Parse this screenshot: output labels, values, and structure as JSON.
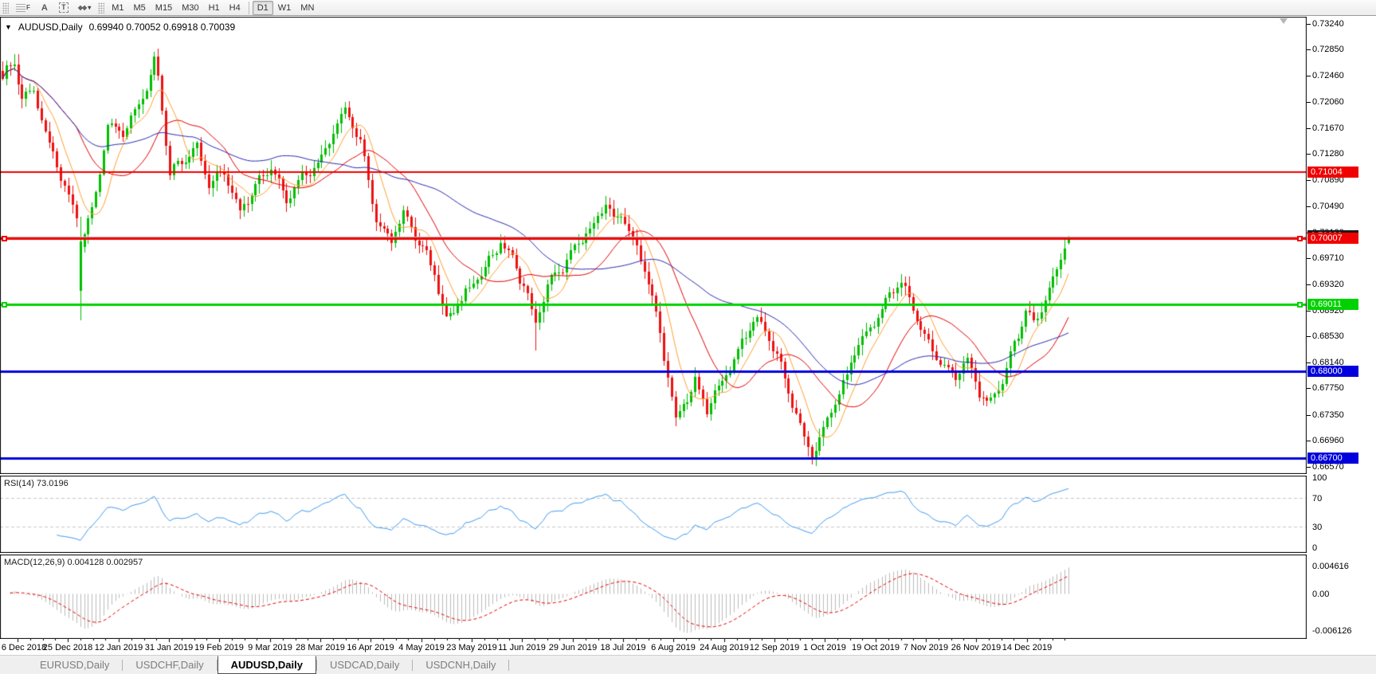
{
  "toolbar": {
    "tools": [
      {
        "name": "fibonacci-tool",
        "glyph": "F"
      },
      {
        "name": "text-tool",
        "glyph": "A"
      },
      {
        "name": "text-label-tool",
        "glyph": "T"
      },
      {
        "name": "arrows-tool",
        "glyph": "◆◆"
      }
    ],
    "timeframes": [
      "M1",
      "M5",
      "M15",
      "M30",
      "H1",
      "H4",
      "D1",
      "W1",
      "MN"
    ],
    "active_timeframe": "D1"
  },
  "chart": {
    "title": "AUDUSD,Daily",
    "ohlc_text": "0.69940 0.70052 0.69918 0.70039"
  },
  "indicators": {
    "rsi": {
      "label": "RSI(14) 73.0196",
      "axis_ticks": [
        100,
        70,
        30,
        0
      ]
    },
    "macd": {
      "label": "MACD(12,26,9) 0.004128 0.002957",
      "axis_ticks": [
        "0.004616",
        "0.00",
        "-0.006126"
      ]
    }
  },
  "price_axis_ticks": [
    "0.73240",
    "0.72850",
    "0.72460",
    "0.72060",
    "0.71670",
    "0.71280",
    "0.70890",
    "0.70490",
    "0.70100",
    "0.69710",
    "0.69320",
    "0.68920",
    "0.68530",
    "0.68140",
    "0.67750",
    "0.67350",
    "0.66960",
    "0.66570"
  ],
  "date_axis_labels": [
    "6 Dec 2018",
    "25 Dec 2018",
    "12 Jan 2019",
    "31 Jan 2019",
    "19 Feb 2019",
    "9 Mar 2019",
    "28 Mar 2019",
    "16 Apr 2019",
    "4 May 2019",
    "23 May 2019",
    "11 Jun 2019",
    "29 Jun 2019",
    "18 Jul 2019",
    "6 Aug 2019",
    "24 Aug 2019",
    "12 Sep 2019",
    "1 Oct 2019",
    "19 Oct 2019",
    "7 Nov 2019",
    "26 Nov 2019",
    "14 Dec 2019"
  ],
  "tabs": {
    "items": [
      "EURUSD,Daily",
      "USDCHF,Daily",
      "AUDUSD,Daily",
      "USDCAD,Daily",
      "USDCNH,Daily"
    ],
    "active": "AUDUSD,Daily"
  },
  "chart_data": {
    "type": "candlestick",
    "symbol": "AUDUSD",
    "timeframe": "Daily",
    "last_candle": {
      "open": 0.6994,
      "high": 0.70052,
      "low": 0.69918,
      "close": 0.70039
    },
    "candles_total": 275,
    "price_pivots": [
      [
        0,
        0.724
      ],
      [
        3,
        0.7262
      ],
      [
        5,
        0.7215
      ],
      [
        8,
        0.723
      ],
      [
        11,
        0.716
      ],
      [
        14,
        0.7105
      ],
      [
        16,
        0.7072
      ],
      [
        18,
        0.7042
      ],
      [
        19,
        0.7032
      ],
      [
        20,
        0.6992
      ],
      [
        21,
        0.7012
      ],
      [
        23,
        0.7048
      ],
      [
        25,
        0.7108
      ],
      [
        27,
        0.7175
      ],
      [
        31,
        0.7152
      ],
      [
        34,
        0.719
      ],
      [
        37,
        0.7228
      ],
      [
        39,
        0.7272
      ],
      [
        40,
        0.7248
      ],
      [
        43,
        0.7098
      ],
      [
        47,
        0.7116
      ],
      [
        50,
        0.714
      ],
      [
        53,
        0.7086
      ],
      [
        57,
        0.7106
      ],
      [
        61,
        0.7036
      ],
      [
        65,
        0.708
      ],
      [
        69,
        0.7116
      ],
      [
        73,
        0.7062
      ],
      [
        77,
        0.7088
      ],
      [
        81,
        0.7112
      ],
      [
        85,
        0.717
      ],
      [
        88,
        0.7196
      ],
      [
        92,
        0.714
      ],
      [
        96,
        0.7025
      ],
      [
        100,
        0.7006
      ],
      [
        103,
        0.7042
      ],
      [
        107,
        0.6988
      ],
      [
        111,
        0.6948
      ],
      [
        114,
        0.6882
      ],
      [
        117,
        0.6906
      ],
      [
        121,
        0.6928
      ],
      [
        125,
        0.6962
      ],
      [
        128,
        0.6998
      ],
      [
        131,
        0.6975
      ],
      [
        134,
        0.6932
      ],
      [
        137,
        0.6868
      ],
      [
        140,
        0.6925
      ],
      [
        144,
        0.6962
      ],
      [
        148,
        0.6998
      ],
      [
        152,
        0.7018
      ],
      [
        155,
        0.7048
      ],
      [
        157,
        0.7025
      ],
      [
        159,
        0.7042
      ],
      [
        162,
        0.7005
      ],
      [
        165,
        0.6958
      ],
      [
        168,
        0.688
      ],
      [
        171,
        0.679
      ],
      [
        173,
        0.6722
      ],
      [
        175,
        0.6757
      ],
      [
        178,
        0.6788
      ],
      [
        181,
        0.6742
      ],
      [
        184,
        0.6772
      ],
      [
        187,
        0.6802
      ],
      [
        190,
        0.6848
      ],
      [
        193,
        0.6886
      ],
      [
        196,
        0.6862
      ],
      [
        199,
        0.682
      ],
      [
        202,
        0.6768
      ],
      [
        205,
        0.6718
      ],
      [
        208,
        0.6676
      ],
      [
        210,
        0.6702
      ],
      [
        213,
        0.6738
      ],
      [
        216,
        0.6772
      ],
      [
        219,
        0.6832
      ],
      [
        222,
        0.6862
      ],
      [
        225,
        0.6888
      ],
      [
        229,
        0.692
      ],
      [
        231,
        0.6928
      ],
      [
        234,
        0.6895
      ],
      [
        237,
        0.6858
      ],
      [
        241,
        0.6815
      ],
      [
        245,
        0.6788
      ],
      [
        248,
        0.6812
      ],
      [
        251,
        0.6772
      ],
      [
        254,
        0.6756
      ],
      [
        257,
        0.6788
      ],
      [
        259,
        0.6822
      ],
      [
        261,
        0.6852
      ],
      [
        263,
        0.6885
      ],
      [
        265,
        0.6872
      ],
      [
        267,
        0.6902
      ],
      [
        269,
        0.6928
      ],
      [
        271,
        0.6958
      ],
      [
        273,
        0.6992
      ],
      [
        274,
        0.70039
      ]
    ],
    "special_candles": [
      {
        "index": 20,
        "open": 0.6922,
        "close": 0.6996,
        "low": 0.6878
      },
      {
        "index": 137,
        "low": 0.6832
      },
      {
        "index": 274,
        "open": 0.6994,
        "high": 0.70052,
        "low": 0.69918,
        "close": 0.70039
      }
    ],
    "candle_colors": {
      "up": "#00BE00",
      "down": "#EE1111"
    },
    "moving_averages": [
      {
        "period": 8,
        "color": "#FFA133"
      },
      {
        "period": 20,
        "color": "#E60000"
      },
      {
        "period": 50,
        "color": "#2B2BB4"
      }
    ],
    "levels": [
      {
        "price": 0.71004,
        "label": "0.71004",
        "color": "#F00000",
        "line_width": 2,
        "handles": false
      },
      {
        "price": 0.70007,
        "label": "0.70007",
        "color": "#F00000",
        "line_width": 3,
        "handles": true
      },
      {
        "price": 0.69011,
        "label": "0.69011",
        "color": "#00D200",
        "line_width": 3,
        "handles": true
      },
      {
        "price": 0.68,
        "label": "0.68000",
        "color": "#0000DC",
        "line_width": 3,
        "handles": false
      },
      {
        "price": 0.667,
        "label": "0.66700",
        "color": "#0000DC",
        "line_width": 3,
        "handles": false
      }
    ],
    "bid_line": {
      "price": 0.70039,
      "label": "0.70039",
      "line_color": "#C0C0C0",
      "label_bg": "#1A1A1A"
    },
    "rsi": {
      "period": 14,
      "current": 73.0196,
      "levels": [
        70,
        30
      ],
      "line_color": "#3E9BEF"
    },
    "macd": {
      "fast": 12,
      "slow": 26,
      "signal": 9,
      "current_macd": 0.004128,
      "current_signal": 0.002957,
      "histogram_color": "#BBBBBB",
      "signal_color": "#E60000"
    },
    "y_axis_range": {
      "max": 0.73348,
      "min": 0.66457
    },
    "grid": false,
    "background": "#FFFFFF"
  }
}
